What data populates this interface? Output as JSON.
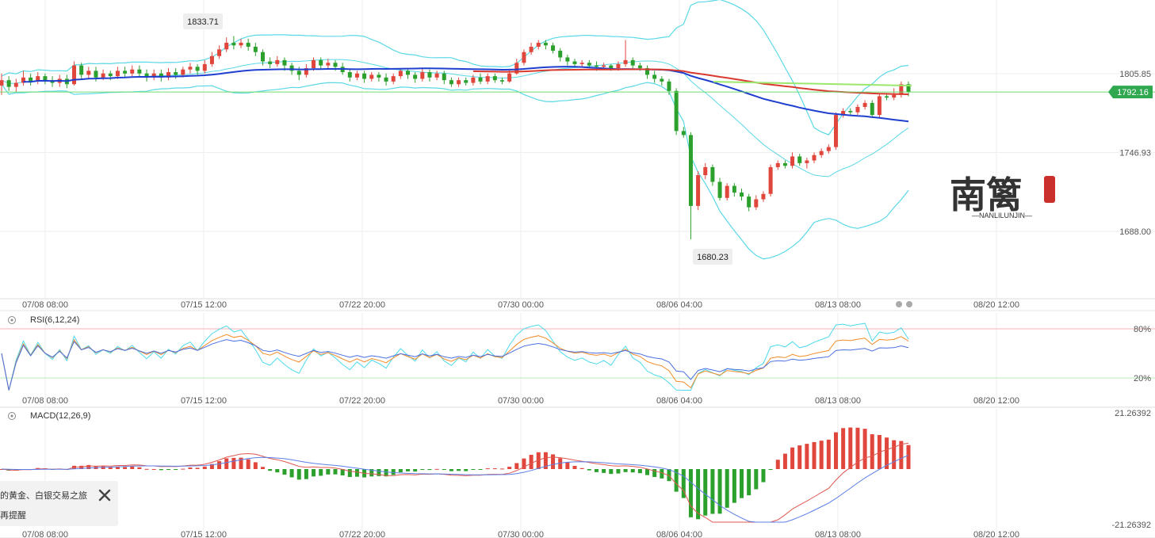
{
  "chart_data": [
    {
      "type": "candlestick",
      "panel": "main",
      "x_ticks": [
        "07/08 08:00",
        "07/15 12:00",
        "07/22 20:00",
        "07/30 00:00",
        "08/06 04:00",
        "08/13 08:00",
        "08/20 12:00"
      ],
      "y_ticks": [
        "1805.85",
        "1746.93",
        "1688.00"
      ],
      "y_range": [
        1660,
        1860
      ],
      "current_price": "1792.16",
      "high_callout": "1833.71",
      "low_callout": "1680.23",
      "candles": [
        [
          1797,
          1801,
          1790,
          1806
        ],
        [
          1801,
          1796,
          1793,
          1804
        ],
        [
          1796,
          1799,
          1792,
          1802
        ],
        [
          1799,
          1803,
          1797,
          1808
        ],
        [
          1803,
          1800,
          1797,
          1806
        ],
        [
          1800,
          1804,
          1798,
          1807
        ],
        [
          1804,
          1801,
          1798,
          1806
        ],
        [
          1801,
          1799,
          1796,
          1804
        ],
        [
          1799,
          1802,
          1796,
          1805
        ],
        [
          1802,
          1798,
          1795,
          1805
        ],
        [
          1798,
          1812,
          1797,
          1815
        ],
        [
          1812,
          1805,
          1802,
          1814
        ],
        [
          1805,
          1808,
          1802,
          1811
        ],
        [
          1808,
          1803,
          1800,
          1811
        ],
        [
          1803,
          1806,
          1801,
          1809
        ],
        [
          1806,
          1804,
          1801,
          1808
        ],
        [
          1804,
          1808,
          1802,
          1811
        ],
        [
          1808,
          1806,
          1803,
          1811
        ],
        [
          1806,
          1809,
          1804,
          1812
        ],
        [
          1809,
          1806,
          1803,
          1812
        ],
        [
          1806,
          1803,
          1800,
          1809
        ],
        [
          1803,
          1806,
          1801,
          1809
        ],
        [
          1806,
          1803,
          1800,
          1809
        ],
        [
          1803,
          1807,
          1801,
          1810
        ],
        [
          1807,
          1805,
          1802,
          1810
        ],
        [
          1805,
          1809,
          1803,
          1811
        ],
        [
          1809,
          1811,
          1806,
          1814
        ],
        [
          1811,
          1808,
          1805,
          1813
        ],
        [
          1808,
          1813,
          1806,
          1816
        ],
        [
          1813,
          1819,
          1811,
          1822
        ],
        [
          1819,
          1824,
          1817,
          1827
        ],
        [
          1824,
          1829,
          1822,
          1833
        ],
        [
          1829,
          1827,
          1824,
          1834
        ],
        [
          1827,
          1829,
          1825,
          1832
        ],
        [
          1829,
          1826,
          1823,
          1832
        ],
        [
          1826,
          1822,
          1819,
          1829
        ],
        [
          1822,
          1815,
          1812,
          1824
        ],
        [
          1815,
          1813,
          1810,
          1818
        ],
        [
          1813,
          1816,
          1811,
          1819
        ],
        [
          1816,
          1812,
          1808,
          1818
        ],
        [
          1812,
          1808,
          1805,
          1814
        ],
        [
          1808,
          1805,
          1801,
          1811
        ],
        [
          1805,
          1810,
          1803,
          1813
        ],
        [
          1810,
          1816,
          1808,
          1818
        ],
        [
          1816,
          1812,
          1809,
          1818
        ],
        [
          1812,
          1814,
          1810,
          1817
        ],
        [
          1814,
          1811,
          1808,
          1816
        ],
        [
          1811,
          1807,
          1805,
          1814
        ],
        [
          1807,
          1803,
          1800,
          1809
        ],
        [
          1803,
          1806,
          1801,
          1808
        ],
        [
          1806,
          1802,
          1799,
          1808
        ],
        [
          1802,
          1805,
          1800,
          1807
        ],
        [
          1805,
          1803,
          1800,
          1807
        ],
        [
          1803,
          1800,
          1797,
          1806
        ],
        [
          1800,
          1804,
          1798,
          1806
        ],
        [
          1804,
          1808,
          1802,
          1810
        ],
        [
          1808,
          1805,
          1802,
          1810
        ],
        [
          1805,
          1802,
          1799,
          1807
        ],
        [
          1802,
          1807,
          1800,
          1810
        ],
        [
          1807,
          1803,
          1800,
          1809
        ],
        [
          1803,
          1806,
          1801,
          1808
        ],
        [
          1806,
          1801,
          1798,
          1808
        ],
        [
          1801,
          1798,
          1796,
          1803
        ],
        [
          1798,
          1801,
          1796,
          1803
        ],
        [
          1801,
          1799,
          1797,
          1803
        ],
        [
          1799,
          1803,
          1797,
          1805
        ],
        [
          1803,
          1800,
          1798,
          1806
        ],
        [
          1800,
          1804,
          1798,
          1806
        ],
        [
          1804,
          1801,
          1799,
          1806
        ],
        [
          1801,
          1800,
          1798,
          1803
        ],
        [
          1800,
          1806,
          1799,
          1809
        ],
        [
          1806,
          1814,
          1805,
          1817
        ],
        [
          1814,
          1822,
          1812,
          1824
        ],
        [
          1822,
          1826,
          1820,
          1829
        ],
        [
          1826,
          1829,
          1824,
          1831
        ],
        [
          1829,
          1827,
          1824,
          1831
        ],
        [
          1827,
          1823,
          1821,
          1829
        ],
        [
          1823,
          1818,
          1815,
          1825
        ],
        [
          1818,
          1815,
          1812,
          1820
        ],
        [
          1815,
          1813,
          1811,
          1817
        ],
        [
          1813,
          1814,
          1811,
          1816
        ],
        [
          1814,
          1812,
          1810,
          1816
        ],
        [
          1812,
          1811,
          1808,
          1815
        ],
        [
          1811,
          1812,
          1809,
          1814
        ],
        [
          1812,
          1810,
          1808,
          1813
        ],
        [
          1810,
          1813,
          1808,
          1815
        ],
        [
          1813,
          1816,
          1811,
          1831
        ],
        [
          1816,
          1812,
          1809,
          1818
        ],
        [
          1812,
          1810,
          1808,
          1814
        ],
        [
          1810,
          1805,
          1802,
          1812
        ],
        [
          1805,
          1802,
          1799,
          1808
        ],
        [
          1802,
          1800,
          1797,
          1804
        ],
        [
          1800,
          1793,
          1790,
          1802
        ],
        [
          1793,
          1763,
          1760,
          1795
        ],
        [
          1763,
          1760,
          1758,
          1766
        ],
        [
          1760,
          1707,
          1682,
          1762
        ],
        [
          1707,
          1730,
          1704,
          1733
        ],
        [
          1730,
          1736,
          1727,
          1739
        ],
        [
          1736,
          1725,
          1722,
          1738
        ],
        [
          1725,
          1713,
          1711,
          1728
        ],
        [
          1713,
          1722,
          1711,
          1724
        ],
        [
          1722,
          1717,
          1714,
          1724
        ],
        [
          1717,
          1714,
          1711,
          1720
        ],
        [
          1714,
          1706,
          1703,
          1716
        ],
        [
          1706,
          1712,
          1704,
          1715
        ],
        [
          1712,
          1716,
          1710,
          1718
        ],
        [
          1716,
          1736,
          1714,
          1738
        ],
        [
          1736,
          1739,
          1734,
          1741
        ],
        [
          1739,
          1737,
          1735,
          1741
        ],
        [
          1737,
          1744,
          1735,
          1747
        ],
        [
          1744,
          1739,
          1737,
          1746
        ],
        [
          1739,
          1741,
          1735,
          1743
        ],
        [
          1741,
          1745,
          1739,
          1747
        ],
        [
          1745,
          1748,
          1743,
          1750
        ],
        [
          1748,
          1751,
          1746,
          1753
        ],
        [
          1751,
          1775,
          1749,
          1777
        ],
        [
          1775,
          1778,
          1773,
          1780
        ],
        [
          1778,
          1777,
          1775,
          1780
        ],
        [
          1777,
          1781,
          1775,
          1783
        ],
        [
          1781,
          1784,
          1779,
          1786
        ],
        [
          1784,
          1775,
          1773,
          1786
        ],
        [
          1775,
          1789,
          1773,
          1791
        ],
        [
          1789,
          1788,
          1786,
          1791
        ],
        [
          1788,
          1790,
          1786,
          1795
        ],
        [
          1790,
          1798,
          1788,
          1800
        ],
        [
          1798,
          1792,
          1789,
          1800
        ]
      ],
      "ma_slow_endpoints": [
        1786,
        1786
      ],
      "bollinger_note": "upper/lower bands"
    },
    {
      "type": "line",
      "panel": "rsi",
      "label": "RSI(6,12,24)",
      "y_ticks": [
        "80%",
        "20%"
      ],
      "x_ticks": [
        "07/08 08:00",
        "07/15 12:00",
        "07/22 20:00",
        "07/30 00:00",
        "08/06 04:00",
        "08/13 08:00",
        "08/20 12:00"
      ]
    },
    {
      "type": "bar",
      "panel": "macd",
      "label": "MACD(12,26,9)",
      "y_ticks": [
        "21.26392",
        "-21.26392"
      ],
      "x_ticks": [
        "07/08 08:00",
        "07/15 12:00",
        "07/22 20:00",
        "07/30 00:00",
        "08/06 04:00",
        "08/13 08:00",
        "08/20 12:00"
      ]
    }
  ],
  "toast": {
    "line1": "的黄金、白银交易之旅",
    "line2": "再提醒"
  },
  "logo": {
    "chars": "南篱",
    "sub": "—NANLILUNJIN—"
  },
  "colors": {
    "up": "#e0463c",
    "down": "#2ca02c",
    "ma_blue": "#1f3fcf",
    "ma_red": "#d93a2f",
    "boll": "#5ad8e6",
    "rsi_cyan": "#4cd9ec",
    "rsi_orange": "#f28c28",
    "rsi_blue": "#4a6fe0",
    "current_line": "#6fdc6f"
  }
}
